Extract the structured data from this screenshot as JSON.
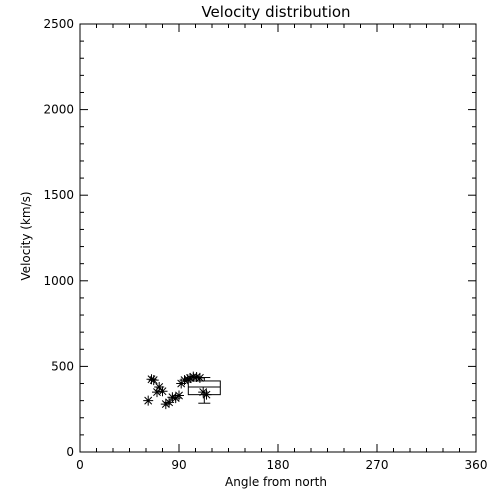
{
  "chart_data": {
    "type": "scatter",
    "title": "Velocity distribution",
    "xlabel": "Angle from north",
    "ylabel": "Velocity (km/s)",
    "xlim": [
      0,
      360
    ],
    "ylim": [
      0,
      2500
    ],
    "xticks": [
      0,
      90,
      180,
      270,
      360
    ],
    "yticks": [
      0,
      500,
      1000,
      1500,
      2000,
      2500
    ],
    "grid": false,
    "marker": "asterisk",
    "series": [
      {
        "points": [
          [
            62,
            300
          ],
          [
            65,
            425
          ],
          [
            67,
            420
          ],
          [
            70,
            350
          ],
          [
            72,
            380
          ],
          [
            75,
            355
          ],
          [
            78,
            280
          ],
          [
            81,
            290
          ],
          [
            84,
            320
          ],
          [
            87,
            315
          ],
          [
            90,
            330
          ],
          [
            92,
            400
          ],
          [
            95,
            420
          ],
          [
            98,
            425
          ],
          [
            100,
            432
          ],
          [
            103,
            440
          ],
          [
            106,
            438
          ],
          [
            109,
            433
          ],
          [
            112,
            350
          ],
          [
            115,
            335
          ]
        ]
      }
    ],
    "boxplot": {
      "x": 113,
      "whisker_low": 285,
      "q1": 335,
      "median": 380,
      "q3": 415,
      "whisker_high": 435
    }
  }
}
